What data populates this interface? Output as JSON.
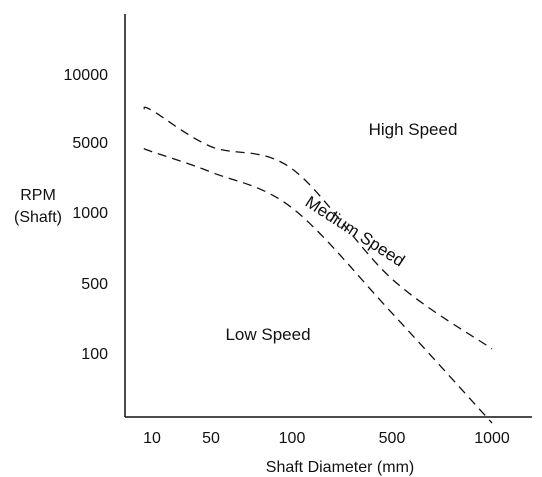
{
  "chart_data": {
    "type": "line",
    "title": "",
    "xlabel": "Shaft Diameter (mm)",
    "ylabel": [
      "RPM",
      "(Shaft)"
    ],
    "x_tick_labels": [
      "10",
      "50",
      "100",
      "500",
      "1000"
    ],
    "y_tick_labels": [
      "10000",
      "5000",
      "1000",
      "500",
      "100"
    ],
    "x_scale": "ordinal-log",
    "y_scale": "ordinal-log",
    "grid": false,
    "legend": "none",
    "line_style": "dashed",
    "regions": [
      "High Speed",
      "Medium Speed",
      "Low Speed"
    ],
    "series": [
      {
        "x": [
          8,
          10,
          50,
          100,
          500,
          1000
        ],
        "y": [
          7000,
          6900,
          4500,
          2700,
          520,
          110
        ]
      },
      {
        "x": [
          8,
          10,
          50,
          100,
          500,
          1000
        ],
        "y": [
          4300,
          4000,
          2500,
          1100,
          250,
          20
        ]
      }
    ]
  }
}
